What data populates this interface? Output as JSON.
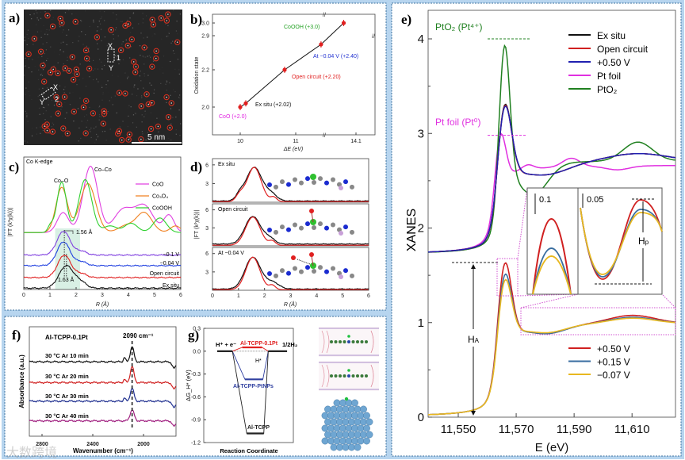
{
  "panel_labels": {
    "a": "a)",
    "b": "b)",
    "c": "c)",
    "d": "d)",
    "e": "e)",
    "f": "f)",
    "g": "g)"
  },
  "micrograph": {
    "scale_bar": "5 nm",
    "region_1": {
      "id": "1",
      "top": "X",
      "bottom": "Y"
    },
    "region_2": {
      "id": "2",
      "top": "X",
      "bottom": "Y"
    },
    "marker_color": "#e0301e"
  },
  "watermark": "大数跨境",
  "chart_data": [
    {
      "panel": "b",
      "type": "scatter",
      "xlabel": "ΔE (eV)",
      "ylabel": "Oxidation state",
      "xticks": [
        10,
        11,
        14.1
      ],
      "yticks": [
        2.0,
        2.2,
        2.9,
        3.0
      ],
      "ytick_labels": [
        "2.0",
        "2.2",
        "2.9",
        "3.0"
      ],
      "axis_breaks": {
        "x": "between 11.5 and 13.5",
        "y": "between 2.45 and 2.9"
      },
      "points": [
        {
          "label": "CoO (+2.0)",
          "x": 10.0,
          "y": 2.0,
          "color": "#e020e0"
        },
        {
          "label": "Ex situ (+2.02)",
          "x": 10.1,
          "y": 2.02,
          "color": "#111111"
        },
        {
          "label": "Open circuit (+2.20)",
          "x": 10.8,
          "y": 2.2,
          "color": "#e02020"
        },
        {
          "label": "At −0.04 V (+2.40)",
          "x": 11.42,
          "y": 2.4,
          "color": "#2030d0"
        },
        {
          "label": "CoOOH (+3.0)",
          "x": 13.8,
          "y": 3.0,
          "color": "#20a020"
        }
      ]
    },
    {
      "panel": "c",
      "type": "line",
      "title": "Co K-edge",
      "xlabel": "R (Å)",
      "ylabel": "|FT (k³χ(k))|",
      "xlim": [
        0,
        6
      ],
      "xticks": [
        0,
        1,
        2,
        3,
        4,
        5,
        6
      ],
      "annotations": {
        "co_o": "Co–O",
        "co_co": "Co–Co",
        "shift_top": "1.56 Å",
        "shift_bottom": "1.63 Å"
      },
      "references": [
        {
          "name": "CoO",
          "color": "#e040e0",
          "base": 43,
          "peaks": [
            [
              1.5,
              15,
              0.22
            ],
            [
              2.55,
              50,
              0.28
            ],
            [
              3.8,
              17,
              0.35
            ],
            [
              4.6,
              20,
              0.35
            ],
            [
              5.55,
              13,
              0.2
            ]
          ]
        },
        {
          "name": "Co₃O₄",
          "color": "#f08020",
          "base": 43,
          "peaks": [
            [
              1.45,
              34,
              0.22
            ],
            [
              2.45,
              37,
              0.3
            ],
            [
              3.9,
              5,
              0.3
            ],
            [
              4.6,
              15,
              0.3
            ],
            [
              5.8,
              5,
              0.2
            ]
          ]
        },
        {
          "name": "CoOOH",
          "color": "#30d030",
          "base": 43,
          "peaks": [
            [
              1.02,
              5,
              0.1
            ],
            [
              1.45,
              38,
              0.18
            ],
            [
              2.35,
              40,
              0.25
            ],
            [
              3.3,
              5,
              0.25
            ],
            [
              4.1,
              7,
              0.25
            ],
            [
              5.2,
              11,
              0.25
            ]
          ]
        }
      ],
      "samples": [
        {
          "name": "−0.1 V",
          "color": "#8040e0",
          "base": 26,
          "peaks": [
            [
              1.52,
              18,
              0.25
            ],
            [
              2.2,
              3,
              0.2
            ]
          ]
        },
        {
          "name": "−0.04 V",
          "color": "#2040e0",
          "base": 18,
          "peaks": [
            [
              1.52,
              18,
              0.25
            ],
            [
              2.2,
              3,
              0.2
            ]
          ]
        },
        {
          "name": "Open circuit",
          "color": "#e02020",
          "base": 9,
          "peaks": [
            [
              1.55,
              17,
              0.25
            ],
            [
              2.2,
              3,
              0.2
            ]
          ]
        },
        {
          "name": "Ex situ",
          "color": "#111111",
          "base": 1,
          "peaks": [
            [
              1.63,
              17,
              0.28
            ],
            [
              2.2,
              4,
              0.2
            ]
          ]
        }
      ]
    },
    {
      "panel": "d",
      "type": "line",
      "xlabel": "R (Å)",
      "ylabel": "|FT (k²χ(k))|",
      "xlim": [
        0,
        6
      ],
      "xticks": [
        0,
        1,
        2,
        3,
        4,
        5,
        6
      ],
      "yticks": [
        3,
        6
      ],
      "subplots": [
        {
          "label": "Ex situ",
          "data": {
            "color": "#111111",
            "base": 0.2,
            "peaks": [
              [
                1.6,
                5.4,
                0.3
              ],
              [
                1.05,
                0.9,
                0.15
              ],
              [
                2.25,
                1.1,
                0.22
              ]
            ]
          },
          "fit": {
            "color": "#e02020",
            "base": 0.1,
            "peaks": [
              [
                1.6,
                5.5,
                0.27
              ],
              [
                1.05,
                1.0,
                0.15
              ],
              [
                2.35,
                0.7,
                0.12
              ]
            ]
          }
        },
        {
          "label": "Open circuit",
          "data": {
            "color": "#111111",
            "base": 0.3,
            "peaks": [
              [
                1.55,
                4.6,
                0.3
              ],
              [
                2.2,
                0.9,
                0.2
              ]
            ]
          },
          "fit": {
            "color": "#e02020",
            "base": 0.1,
            "peaks": [
              [
                1.55,
                4.7,
                0.28
              ],
              [
                2.3,
                0.7,
                0.12
              ]
            ]
          }
        },
        {
          "label": "At −0.04 V",
          "data": {
            "color": "#111111",
            "base": 0.2,
            "peaks": [
              [
                1.55,
                5.2,
                0.3
              ],
              [
                2.3,
                1.1,
                0.25
              ]
            ]
          },
          "fit": {
            "color": "#e02020",
            "base": 0.1,
            "peaks": [
              [
                1.55,
                5.3,
                0.27
              ],
              [
                2.3,
                0.7,
                0.12
              ]
            ]
          }
        }
      ]
    },
    {
      "panel": "f",
      "type": "line",
      "title": "Al-TCPP-0.1Pt",
      "peak_label": "2090 cm⁻¹",
      "xlabel": "Wavenumber (cm⁻¹)",
      "ylabel": "Absorbance (a.u.)",
      "xlim": [
        2900,
        1744
      ],
      "xticks": [
        2800,
        2400,
        2000
      ],
      "series": [
        {
          "name": "30 °C Ar 10 min",
          "color": "#111111",
          "base": 68,
          "peaks": [
            [
              2090,
              14,
              14
            ],
            [
              2150,
              4,
              8
            ],
            [
              1760,
              -6,
              14
            ]
          ]
        },
        {
          "name": "30 °C Ar 20 min",
          "color": "#d02020",
          "base": 49,
          "peaks": [
            [
              2090,
              15,
              14
            ],
            [
              2150,
              3,
              8
            ],
            [
              1760,
              -6,
              14
            ]
          ]
        },
        {
          "name": "30 °C Ar 30 min",
          "color": "#203090",
          "base": 32,
          "peaks": [
            [
              2090,
              12,
              14
            ],
            [
              2150,
              3,
              8
            ],
            [
              1760,
              -6,
              14
            ]
          ]
        },
        {
          "name": "30 °C Ar 40 min",
          "color": "#a02080",
          "base": 14,
          "peaks": [
            [
              2090,
              10,
              16
            ],
            [
              1760,
              -5,
              14
            ]
          ]
        }
      ]
    },
    {
      "panel": "g",
      "type": "line",
      "xlabel": "Reaction Coordinate",
      "ylabel": "ΔG_H* (eV)",
      "ylim": [
        -1.2,
        0.3
      ],
      "yticks": [
        0.3,
        0.0,
        -0.3,
        -0.6,
        -0.9,
        -1.2
      ],
      "ytick_labels": [
        "0.3",
        "0.0",
        "-0.3",
        "-0.6",
        "-0.9",
        "-1.2"
      ],
      "states": {
        "initial": "H⁺ + e⁻",
        "intermediate": "H*",
        "final": "1/2H₂"
      },
      "series": [
        {
          "name": "Al-TCPP-0.1Pt",
          "color": "#e02020",
          "dG": 0.05
        },
        {
          "name": "Al-TCPP-PtNPs",
          "color": "#3040a0",
          "dG": -0.37
        },
        {
          "name": "Al-TCPP",
          "color": "#222222",
          "dG": -1.08
        }
      ]
    },
    {
      "panel": "e",
      "type": "line",
      "xlabel": "E (eV)",
      "ylabel": "XANES",
      "xlim": [
        11539.6,
        11625
      ],
      "ylim": [
        0,
        4.25
      ],
      "xticks": [
        11550,
        11570,
        11590,
        11610
      ],
      "xtick_labels": [
        "11,550",
        "11,570",
        "11,590",
        "11,610"
      ],
      "yticks": [
        0,
        1,
        2,
        3,
        4
      ],
      "annotations": {
        "pto2": "PtO₂ (Pt⁴⁺)",
        "ptfoil": "Pt foil (Pt⁰)",
        "ha": "H_A",
        "hp": "H_p"
      },
      "upper_series": [
        {
          "name": "Ex situ",
          "color": "#111111",
          "base": 1.72,
          "step": 1.0,
          "edge": 11563.5,
          "edge_width": 2,
          "peaks": [
            [
              11566,
              0.82,
              2.3
            ],
            [
              11580,
              -0.12,
              8
            ],
            [
              11612,
              0.08,
              10
            ]
          ]
        },
        {
          "name": "Open circuit",
          "color": "#d02020",
          "base": 1.72,
          "step": 1.0,
          "edge": 11563.5,
          "edge_width": 2,
          "peaks": [
            [
              11566,
              0.81,
              2.3
            ],
            [
              11580,
              -0.12,
              8
            ],
            [
              11612,
              0.08,
              10
            ]
          ]
        },
        {
          "name": "+0.50 V",
          "color": "#2020b0",
          "base": 1.72,
          "step": 1.0,
          "edge": 11563.5,
          "edge_width": 2,
          "peaks": [
            [
              11566,
              0.8,
              2.35
            ],
            [
              11580,
              -0.12,
              8
            ],
            [
              11612,
              0.08,
              10
            ]
          ]
        },
        {
          "name": "Pt foil",
          "color": "#e030e0",
          "base": 1.72,
          "step": 0.95,
          "edge": 11562.5,
          "edge_width": 2,
          "peaks": [
            [
              11564.5,
              0.55,
              1.8
            ],
            [
              11574,
              0.05,
              2
            ],
            [
              11589,
              0.09,
              3
            ],
            [
              11605,
              -0.04,
              4
            ]
          ]
        },
        {
          "name": "PtO₂",
          "color": "#208020",
          "base": 1.72,
          "step": 1.0,
          "edge": 11563.5,
          "edge_width": 1.8,
          "peaks": [
            [
              11566,
              1.45,
              1.8
            ],
            [
              11576,
              -0.32,
              5
            ],
            [
              11612,
              0.2,
              5
            ]
          ]
        }
      ],
      "lower_series": [
        {
          "name": "+0.50 V",
          "color": "#d02020",
          "base": 0,
          "step": 1.0,
          "edge": 11563.5,
          "edge_width": 2,
          "peaks": [
            [
              11566,
              0.84,
              2.3
            ],
            [
              11581,
              -0.08,
              6
            ],
            [
              11610,
              0.09,
              8
            ]
          ]
        },
        {
          "name": "+0.15 V",
          "color": "#3a6ea0",
          "base": 0,
          "step": 1.0,
          "edge": 11563.5,
          "edge_width": 2,
          "peaks": [
            [
              11566,
              0.72,
              2.3
            ],
            [
              11581,
              -0.08,
              6
            ],
            [
              11610,
              0.07,
              8
            ]
          ]
        },
        {
          "name": "−0.07 V",
          "color": "#e8b820",
          "base": 0,
          "step": 1.0,
          "edge": 11563.5,
          "edge_width": 2,
          "peaks": [
            [
              11566,
              0.66,
              2.3
            ],
            [
              11581,
              -0.07,
              6
            ],
            [
              11610,
              0.06,
              8
            ]
          ]
        }
      ],
      "inset": {
        "scale_left": "0.1",
        "scale_right": "0.05"
      }
    }
  ]
}
